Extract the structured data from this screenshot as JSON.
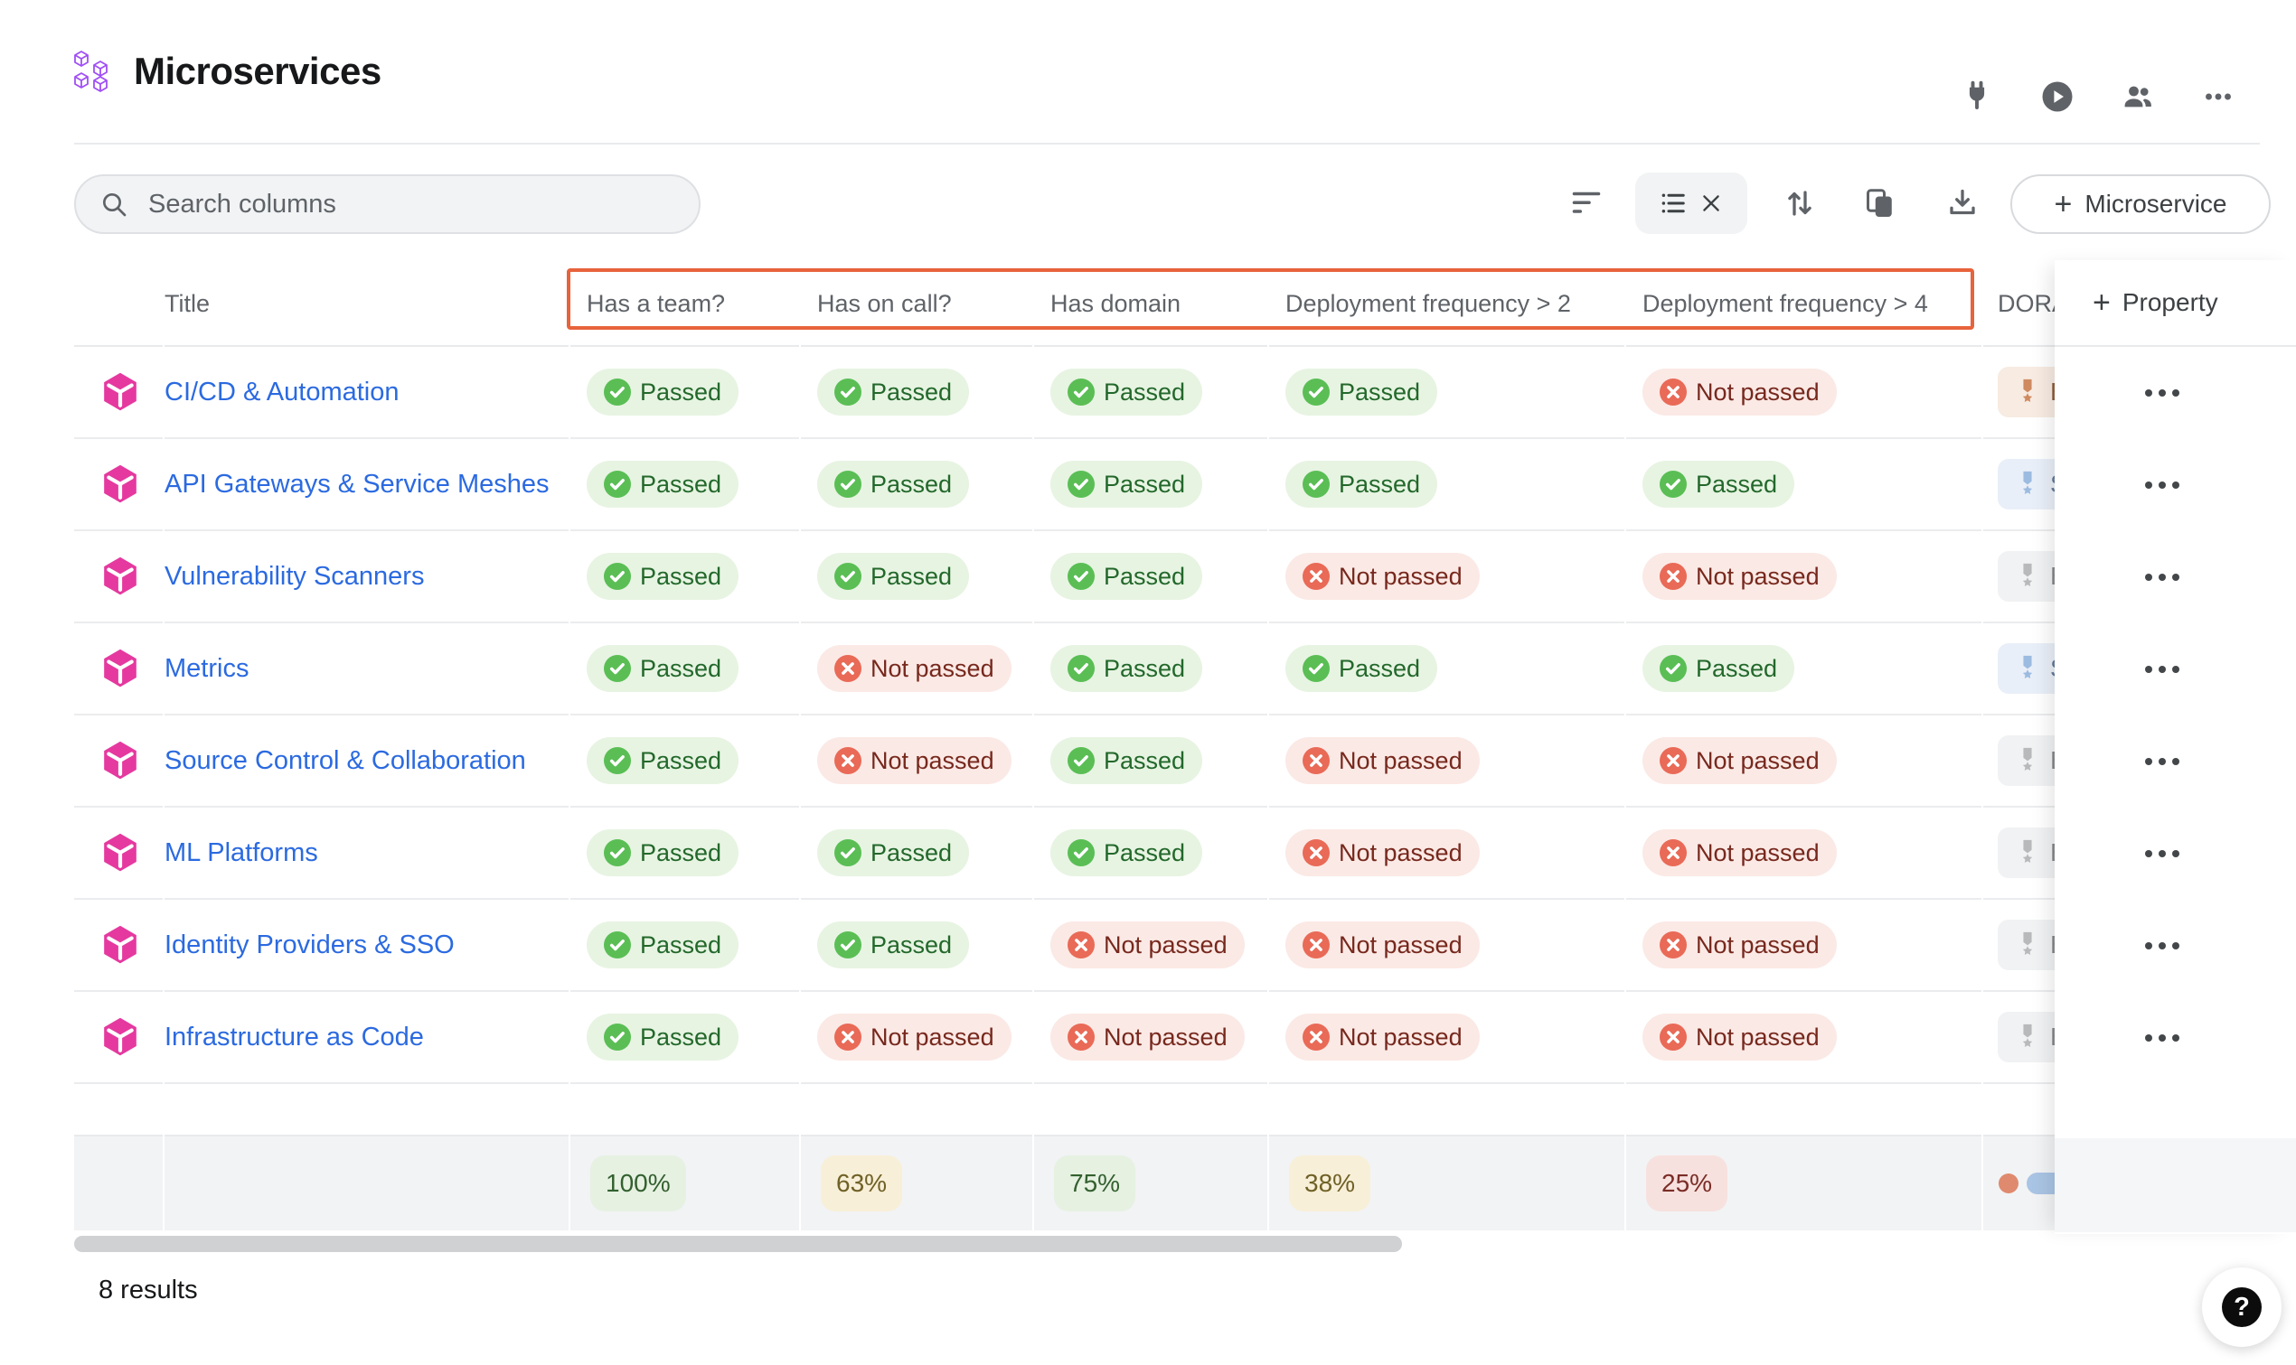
{
  "page": {
    "title": "Microservices"
  },
  "header": {
    "icons": [
      {
        "name": "plug-icon"
      },
      {
        "name": "play-circle-icon"
      },
      {
        "name": "users-icon"
      },
      {
        "name": "more-horizontal-icon"
      }
    ]
  },
  "toolbar": {
    "search_placeholder": "Search columns",
    "search_value": "",
    "create_button_label": "Microservice",
    "create_button_plus": "+",
    "icons": [
      "filter-icon",
      "view-list-icon",
      "close-icon",
      "sort-icon",
      "copy-icon",
      "download-icon"
    ]
  },
  "table": {
    "columns": [
      "Title",
      "Has a team?",
      "Has on call?",
      "Has domain",
      "Deployment frequency > 2",
      "Deployment frequency > 4",
      "DORA"
    ],
    "add_property_label": "Property",
    "add_property_plus": "+",
    "badges": {
      "passed": "Passed",
      "not_passed": "Not passed"
    },
    "rows": [
      {
        "title": "CI/CD & Automation",
        "checks": [
          "passed",
          "passed",
          "passed",
          "passed",
          "not_passed"
        ],
        "dora": {
          "letter": "B",
          "tier": "bronze"
        }
      },
      {
        "title": "API Gateways & Service Meshes",
        "checks": [
          "passed",
          "passed",
          "passed",
          "passed",
          "passed"
        ],
        "dora": {
          "letter": "S",
          "tier": "silver"
        }
      },
      {
        "title": "Vulnerability Scanners",
        "checks": [
          "passed",
          "passed",
          "passed",
          "not_passed",
          "not_passed"
        ],
        "dora": {
          "letter": "B",
          "tier": "basic"
        }
      },
      {
        "title": "Metrics",
        "checks": [
          "passed",
          "not_passed",
          "passed",
          "passed",
          "passed"
        ],
        "dora": {
          "letter": "S",
          "tier": "silver"
        }
      },
      {
        "title": "Source Control & Collaboration",
        "checks": [
          "passed",
          "not_passed",
          "passed",
          "not_passed",
          "not_passed"
        ],
        "dora": {
          "letter": "B",
          "tier": "basic"
        }
      },
      {
        "title": "ML Platforms",
        "checks": [
          "passed",
          "passed",
          "passed",
          "not_passed",
          "not_passed"
        ],
        "dora": {
          "letter": "B",
          "tier": "basic"
        }
      },
      {
        "title": "Identity Providers & SSO",
        "checks": [
          "passed",
          "passed",
          "not_passed",
          "not_passed",
          "not_passed"
        ],
        "dora": {
          "letter": "B",
          "tier": "basic"
        }
      },
      {
        "title": "Infrastructure as Code",
        "checks": [
          "passed",
          "not_passed",
          "not_passed",
          "not_passed",
          "not_passed"
        ],
        "dora": {
          "letter": "B",
          "tier": "basic"
        }
      }
    ],
    "summary": {
      "cells": [
        {
          "text": "100%",
          "variant": "green"
        },
        {
          "text": "63%",
          "variant": "yellow"
        },
        {
          "text": "75%",
          "variant": "green"
        },
        {
          "text": "38%",
          "variant": "yellow"
        },
        {
          "text": "25%",
          "variant": "red"
        }
      ]
    }
  },
  "footer": {
    "results": "8 results"
  },
  "help": {
    "label": "?"
  },
  "colors": {
    "highlight_rect": "#e7633c",
    "link_blue": "#2b6ae0",
    "entity_icon_pink": "#e5399f",
    "logo_purple": "#a04ef6",
    "passed_bg": "#e7f4e2",
    "passed_icon": "#5abe55",
    "passed_text": "#23682b",
    "not_passed_bg": "#fbe9e5",
    "not_passed_icon": "#e96a57",
    "not_passed_text": "#77281d",
    "summary_green_bg": "#e6f1e2",
    "summary_yellow_bg": "#f8efd8",
    "summary_red_bg": "#f7e1de",
    "tier_bronze_icon": "#cf8a60",
    "tier_silver_icon": "#9cbbe0",
    "tier_basic_icon": "#b7b9bb",
    "summary_row_bg": "#f2f3f5",
    "toolbar_gray": "#5f6368"
  }
}
